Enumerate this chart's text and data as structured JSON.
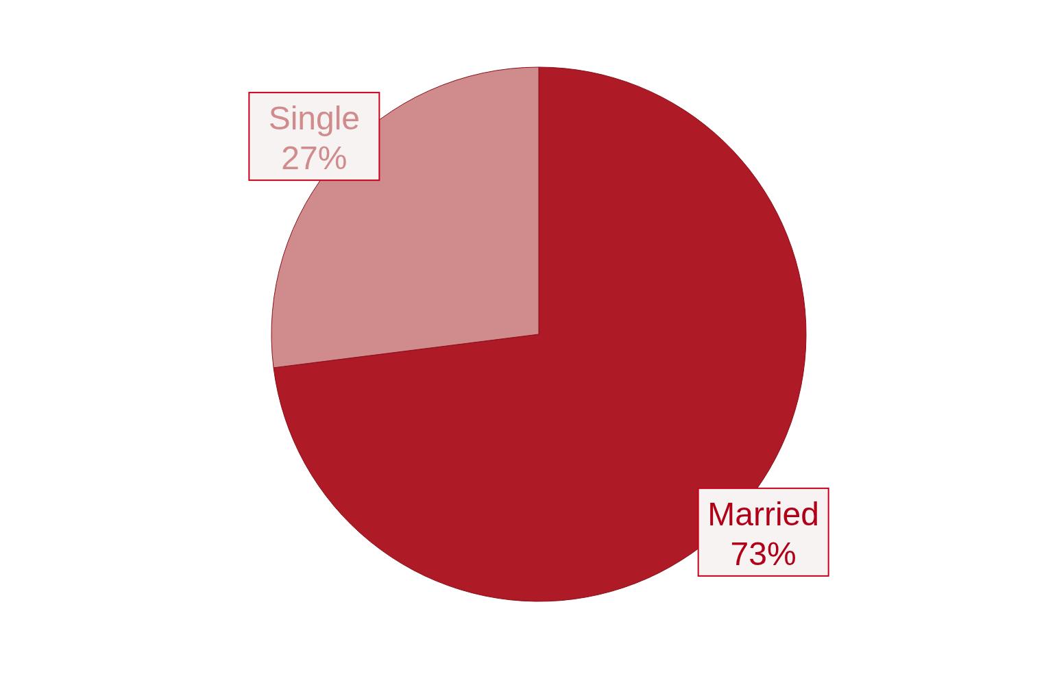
{
  "chart_data": {
    "type": "pie",
    "categories": [
      "Married",
      "Single"
    ],
    "values": [
      73,
      27
    ],
    "colors": [
      "#ae1a25",
      "#d08b8c"
    ],
    "value_labels": [
      "73%",
      "27%"
    ]
  }
}
